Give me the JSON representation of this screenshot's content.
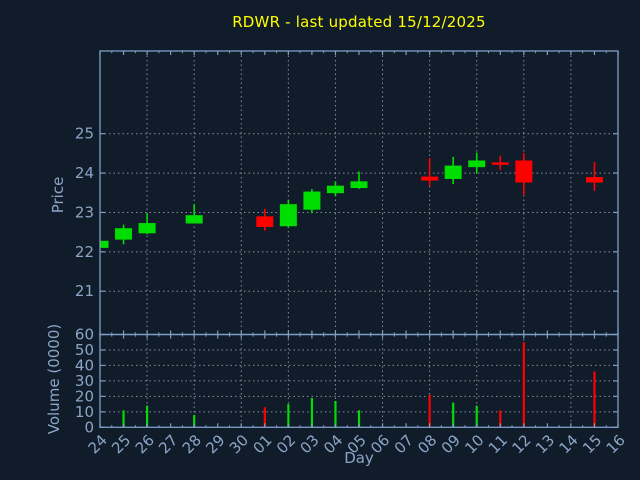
{
  "title": "RDWR - last updated 15/12/2025",
  "colors": {
    "background": "#111c2b",
    "axis": "#7e9ec6",
    "grid": "#b4bec8",
    "tick_label": "#8aa5c6",
    "title": "#ffff00",
    "up": "#00dd00",
    "down": "#ff0000"
  },
  "chart_data": [
    {
      "type": "candlestick",
      "ylabel": "Price",
      "x": [
        "24",
        "25",
        "26",
        "27",
        "28",
        "29",
        "30",
        "01",
        "02",
        "03",
        "04",
        "05",
        "06",
        "07",
        "08",
        "09",
        "10",
        "11",
        "12",
        "13",
        "14",
        "15",
        "16"
      ],
      "ylim": [
        19.9,
        27.1
      ],
      "yticks": [
        21,
        22,
        23,
        24,
        25
      ],
      "grid": true,
      "gridline_every_n_days": 2,
      "series": [
        {
          "name": "OHLC",
          "points": [
            {
              "day": "24",
              "open": 22.1,
              "high": 22.28,
              "low": 22.1,
              "close": 22.28
            },
            {
              "day": "25",
              "open": 22.31,
              "high": 22.69,
              "low": 22.19,
              "close": 22.6
            },
            {
              "day": "26",
              "open": 22.47,
              "high": 22.99,
              "low": 22.45,
              "close": 22.73
            },
            {
              "day": "28",
              "open": 22.72,
              "high": 23.21,
              "low": 22.72,
              "close": 22.93
            },
            {
              "day": "01",
              "open": 22.9,
              "high": 23.09,
              "low": 22.54,
              "close": 22.63
            },
            {
              "day": "02",
              "open": 22.65,
              "high": 23.32,
              "low": 22.62,
              "close": 23.21
            },
            {
              "day": "03",
              "open": 23.07,
              "high": 23.59,
              "low": 22.98,
              "close": 23.53
            },
            {
              "day": "04",
              "open": 23.49,
              "high": 23.79,
              "low": 23.41,
              "close": 23.68
            },
            {
              "day": "05",
              "open": 23.62,
              "high": 24.04,
              "low": 23.6,
              "close": 23.79
            },
            {
              "day": "08",
              "open": 23.91,
              "high": 24.38,
              "low": 23.66,
              "close": 23.81
            },
            {
              "day": "09",
              "open": 23.85,
              "high": 24.41,
              "low": 23.72,
              "close": 24.19
            },
            {
              "day": "10",
              "open": 24.15,
              "high": 24.52,
              "low": 24.0,
              "close": 24.32
            },
            {
              "day": "11",
              "open": 24.27,
              "high": 24.44,
              "low": 24.08,
              "close": 24.21
            },
            {
              "day": "12",
              "open": 24.32,
              "high": 24.51,
              "low": 23.45,
              "close": 23.76
            },
            {
              "day": "15",
              "open": 23.9,
              "high": 24.28,
              "low": 23.55,
              "close": 23.76
            }
          ]
        }
      ]
    },
    {
      "type": "bar",
      "ylabel": "Volume (0000)",
      "xlabel": "Day",
      "categories": [
        "24",
        "25",
        "26",
        "27",
        "28",
        "29",
        "30",
        "01",
        "02",
        "03",
        "04",
        "05",
        "06",
        "07",
        "08",
        "09",
        "10",
        "11",
        "12",
        "13",
        "14",
        "15",
        "16"
      ],
      "ylim": [
        0,
        60
      ],
      "yticks": [
        0,
        10,
        20,
        30,
        40,
        50,
        60
      ],
      "grid": true,
      "values": [
        {
          "day": "25",
          "value": 11,
          "direction": "up"
        },
        {
          "day": "26",
          "value": 14,
          "direction": "up"
        },
        {
          "day": "28",
          "value": 8,
          "direction": "up"
        },
        {
          "day": "01",
          "value": 13,
          "direction": "down"
        },
        {
          "day": "02",
          "value": 15,
          "direction": "up"
        },
        {
          "day": "03",
          "value": 19,
          "direction": "up"
        },
        {
          "day": "04",
          "value": 17,
          "direction": "up"
        },
        {
          "day": "05",
          "value": 11,
          "direction": "up"
        },
        {
          "day": "08",
          "value": 21,
          "direction": "down"
        },
        {
          "day": "09",
          "value": 16,
          "direction": "up"
        },
        {
          "day": "10",
          "value": 14,
          "direction": "up"
        },
        {
          "day": "11",
          "value": 11,
          "direction": "down"
        },
        {
          "day": "12",
          "value": 55,
          "direction": "down"
        },
        {
          "day": "15",
          "value": 36,
          "direction": "down"
        }
      ]
    }
  ]
}
